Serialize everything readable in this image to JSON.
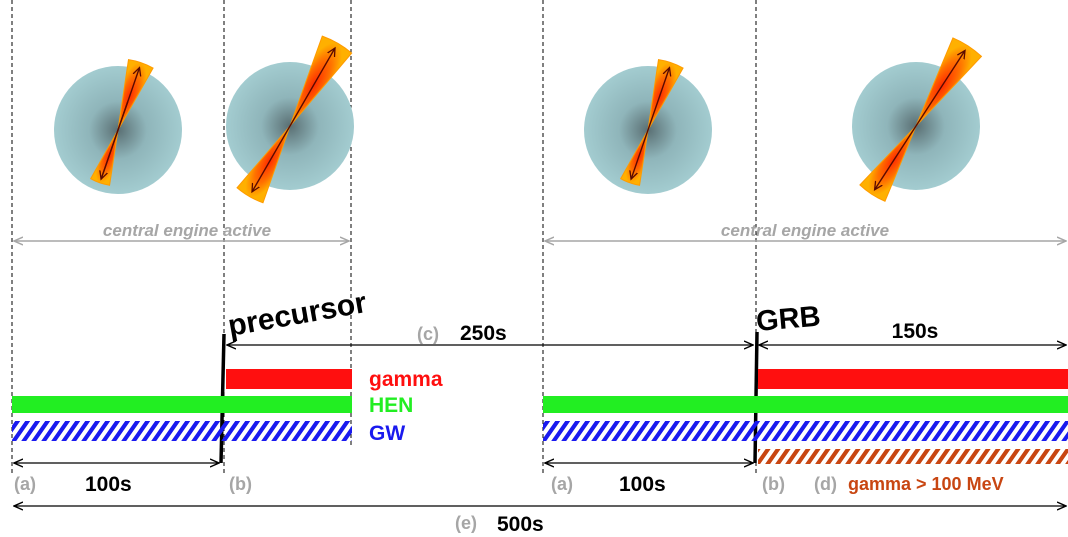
{
  "labels": {
    "engine_active_left": "central engine active",
    "engine_active_right": "central engine active",
    "precursor": "precursor",
    "grb": "GRB",
    "c_letter": "(c)",
    "c_value": "250s",
    "grb_duration": "150s",
    "legend_gamma": "gamma",
    "legend_hen": "HEN",
    "legend_gw": "GW",
    "a_left": "(a)",
    "a_left_value": "100s",
    "b_left": "(b)",
    "a_right": "(a)",
    "a_right_value": "100s",
    "b_right": "(b)",
    "d_letter": "(d)",
    "d_value": "gamma > 100 MeV",
    "e_letter": "(e)",
    "e_value": "500s"
  },
  "colors": {
    "gamma": "#ff0f0f",
    "hen": "#22ee22",
    "gw": "#1a1aee",
    "high_energy_gamma": "#c84612",
    "annotation_gray": "#a6a6a6",
    "star": "#9ec8cc",
    "jet": "#ff8c00"
  }
}
